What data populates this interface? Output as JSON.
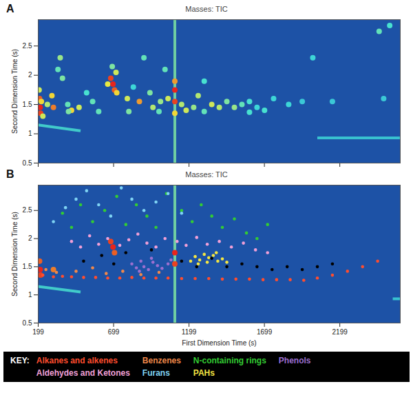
{
  "chart_data": [
    {
      "type": "scatter",
      "panel": "A",
      "title": "Masses: TIC",
      "ylabel": "Second Dimension Time (s)",
      "xlim": [
        199,
        2600
      ],
      "ylim": [
        0.5,
        2.95
      ],
      "xticks": [
        199,
        699,
        1199,
        1699,
        2199
      ],
      "yticks": [
        0.5,
        1,
        1.5,
        2,
        2.5
      ],
      "tick_labels": "y",
      "grid": false,
      "intensity_range": [
        0,
        100
      ],
      "streaks": [
        {
          "x1": 1105,
          "x2": 1105,
          "y1": 0.5,
          "y2": 2.95,
          "intensity": 45
        },
        {
          "x1": 2050,
          "x2": 2600,
          "y1": 0.93,
          "y2": 0.93,
          "intensity": 30
        },
        {
          "x1": 199,
          "x2": 480,
          "y1": 1.15,
          "y2": 1.05,
          "intensity": 35
        }
      ],
      "peaks": [
        {
          "x": 205,
          "y": 1.75,
          "intensity": 60
        },
        {
          "x": 208,
          "y": 1.6,
          "intensity": 90
        },
        {
          "x": 212,
          "y": 1.45,
          "intensity": 100
        },
        {
          "x": 215,
          "y": 1.35,
          "intensity": 95
        },
        {
          "x": 220,
          "y": 1.55,
          "intensity": 70
        },
        {
          "x": 230,
          "y": 1.3,
          "intensity": 60
        },
        {
          "x": 260,
          "y": 1.5,
          "intensity": 55
        },
        {
          "x": 290,
          "y": 1.65,
          "intensity": 70
        },
        {
          "x": 300,
          "y": 1.45,
          "intensity": 85
        },
        {
          "x": 330,
          "y": 2.1,
          "intensity": 40
        },
        {
          "x": 345,
          "y": 2.3,
          "intensity": 50
        },
        {
          "x": 360,
          "y": 1.95,
          "intensity": 45
        },
        {
          "x": 395,
          "y": 1.5,
          "intensity": 40
        },
        {
          "x": 420,
          "y": 1.4,
          "intensity": 70
        },
        {
          "x": 470,
          "y": 1.45,
          "intensity": 60
        },
        {
          "x": 520,
          "y": 1.7,
          "intensity": 35
        },
        {
          "x": 560,
          "y": 1.55,
          "intensity": 40
        },
        {
          "x": 660,
          "y": 1.85,
          "intensity": 65
        },
        {
          "x": 680,
          "y": 1.95,
          "intensity": 95
        },
        {
          "x": 695,
          "y": 1.85,
          "intensity": 100
        },
        {
          "x": 705,
          "y": 1.75,
          "intensity": 90
        },
        {
          "x": 715,
          "y": 2.05,
          "intensity": 60
        },
        {
          "x": 690,
          "y": 2.15,
          "intensity": 45
        },
        {
          "x": 720,
          "y": 1.7,
          "intensity": 70
        },
        {
          "x": 790,
          "y": 1.6,
          "intensity": 60
        },
        {
          "x": 830,
          "y": 1.8,
          "intensity": 30
        },
        {
          "x": 870,
          "y": 1.55,
          "intensity": 80
        },
        {
          "x": 900,
          "y": 2.3,
          "intensity": 40
        },
        {
          "x": 940,
          "y": 1.7,
          "intensity": 45
        },
        {
          "x": 960,
          "y": 1.45,
          "intensity": 55
        },
        {
          "x": 1010,
          "y": 1.55,
          "intensity": 50
        },
        {
          "x": 1040,
          "y": 2.1,
          "intensity": 40
        },
        {
          "x": 1060,
          "y": 1.6,
          "intensity": 60
        },
        {
          "x": 1105,
          "y": 1.55,
          "intensity": 95
        },
        {
          "x": 1105,
          "y": 1.75,
          "intensity": 100
        },
        {
          "x": 1105,
          "y": 1.9,
          "intensity": 80
        },
        {
          "x": 1105,
          "y": 1.35,
          "intensity": 70
        },
        {
          "x": 1150,
          "y": 1.5,
          "intensity": 55
        },
        {
          "x": 1180,
          "y": 1.4,
          "intensity": 60
        },
        {
          "x": 1230,
          "y": 1.45,
          "intensity": 50
        },
        {
          "x": 1260,
          "y": 1.65,
          "intensity": 55
        },
        {
          "x": 1300,
          "y": 1.9,
          "intensity": 35
        },
        {
          "x": 1350,
          "y": 1.5,
          "intensity": 60
        },
        {
          "x": 1400,
          "y": 1.45,
          "intensity": 55
        },
        {
          "x": 1450,
          "y": 1.55,
          "intensity": 45
        },
        {
          "x": 1500,
          "y": 1.45,
          "intensity": 50
        },
        {
          "x": 1550,
          "y": 1.5,
          "intensity": 40
        },
        {
          "x": 1600,
          "y": 1.55,
          "intensity": 35
        },
        {
          "x": 1650,
          "y": 1.45,
          "intensity": 30
        },
        {
          "x": 1700,
          "y": 1.4,
          "intensity": 35
        },
        {
          "x": 1760,
          "y": 1.6,
          "intensity": 30
        },
        {
          "x": 1860,
          "y": 1.5,
          "intensity": 30
        },
        {
          "x": 1950,
          "y": 1.55,
          "intensity": 25
        },
        {
          "x": 2020,
          "y": 2.3,
          "intensity": 30
        },
        {
          "x": 2150,
          "y": 1.55,
          "intensity": 25
        },
        {
          "x": 2460,
          "y": 2.75,
          "intensity": 40
        },
        {
          "x": 2530,
          "y": 2.85,
          "intensity": 35
        },
        {
          "x": 2490,
          "y": 1.6,
          "intensity": 25
        },
        {
          "x": 400,
          "y": 1.38,
          "intensity": 45
        },
        {
          "x": 600,
          "y": 1.38,
          "intensity": 40
        },
        {
          "x": 800,
          "y": 1.38,
          "intensity": 45
        },
        {
          "x": 1000,
          "y": 1.38,
          "intensity": 40
        },
        {
          "x": 1300,
          "y": 1.38,
          "intensity": 40
        },
        {
          "x": 1600,
          "y": 1.37,
          "intensity": 35
        }
      ]
    },
    {
      "type": "scatter",
      "panel": "B",
      "title": "Masses: TIC",
      "xlabel": "First Dimension Time (s)",
      "ylabel": "Second Dimension Time (s)",
      "xlim": [
        199,
        2600
      ],
      "ylim": [
        0.5,
        2.95
      ],
      "xticks": [
        199,
        699,
        1199,
        1699,
        2199
      ],
      "yticks": [
        0.5,
        1,
        1.5,
        2,
        2.5
      ],
      "grid": false,
      "intensity_range": [
        0,
        100
      ],
      "legend": "bottom",
      "legend_title": "KEY:",
      "streaks": [
        {
          "x1": 1105,
          "x2": 1105,
          "y1": 0.5,
          "y2": 2.95,
          "intensity": 45
        },
        {
          "x1": 2550,
          "x2": 2600,
          "y1": 0.93,
          "y2": 0.93,
          "intensity": 30
        },
        {
          "x1": 199,
          "x2": 480,
          "y1": 1.15,
          "y2": 1.05,
          "intensity": 35
        }
      ],
      "peaks": [
        {
          "x": 212,
          "y": 1.45,
          "intensity": 100
        },
        {
          "x": 215,
          "y": 1.35,
          "intensity": 95
        },
        {
          "x": 208,
          "y": 1.6,
          "intensity": 90
        },
        {
          "x": 300,
          "y": 1.45,
          "intensity": 85
        },
        {
          "x": 695,
          "y": 1.85,
          "intensity": 100
        },
        {
          "x": 680,
          "y": 1.95,
          "intensity": 95
        },
        {
          "x": 705,
          "y": 1.75,
          "intensity": 90
        },
        {
          "x": 1105,
          "y": 1.75,
          "intensity": 100
        },
        {
          "x": 1105,
          "y": 1.55,
          "intensity": 95
        }
      ],
      "series": [
        {
          "name": "Alkanes and alkenes",
          "color": "#ff4d2e",
          "x": [
            230,
            300,
            360,
            420,
            500,
            580,
            660,
            740,
            820,
            900,
            980,
            1060,
            1150,
            1240,
            1330,
            1420,
            1510,
            1600,
            1690,
            1780,
            1870,
            1960,
            2050,
            2150,
            2250,
            2350,
            2450
          ],
          "y": [
            1.35,
            1.32,
            1.33,
            1.32,
            1.31,
            1.31,
            1.3,
            1.3,
            1.31,
            1.3,
            1.3,
            1.3,
            1.29,
            1.29,
            1.29,
            1.28,
            1.28,
            1.28,
            1.27,
            1.27,
            1.27,
            1.26,
            1.3,
            1.35,
            1.42,
            1.5,
            1.6
          ]
        },
        {
          "name": "Benzenes",
          "color": "#f0884a",
          "x": [
            250,
            320,
            450,
            560,
            650,
            760,
            880,
            1000
          ],
          "y": [
            1.45,
            1.4,
            1.42,
            1.48,
            1.38,
            1.42,
            1.36,
            1.4
          ]
        },
        {
          "name": "N-containing rings",
          "color": "#33cc33",
          "x": [
            360,
            420,
            480,
            560,
            640,
            720,
            780,
            850,
            920,
            980,
            1050,
            1150,
            1220,
            1280,
            1350,
            1420,
            1500,
            1580,
            1650,
            1720
          ],
          "y": [
            2.45,
            2.2,
            2.6,
            2.3,
            2.5,
            2.75,
            2.25,
            2.6,
            2.4,
            2.2,
            2.8,
            2.5,
            2.3,
            2.6,
            2.4,
            2.2,
            2.35,
            2.1,
            2.0,
            2.25
          ]
        },
        {
          "name": "Phenols",
          "color": "#9b6fd0",
          "x": [
            820,
            850,
            880,
            900,
            930,
            960,
            990,
            1020,
            1060,
            1080,
            870,
            950
          ],
          "y": [
            1.55,
            1.48,
            1.6,
            1.5,
            1.45,
            1.58,
            1.52,
            1.47,
            1.55,
            1.62,
            1.42,
            1.65
          ]
        },
        {
          "name": "Aldehydes and Ketones",
          "color": "#f2a0d8",
          "x": [
            420,
            480,
            540,
            600,
            660,
            740,
            800,
            860,
            920,
            980,
            1040,
            1120,
            1180,
            1250,
            1320,
            1400,
            1480,
            1560,
            1640,
            1720
          ],
          "y": [
            1.95,
            1.85,
            2.05,
            1.9,
            2.0,
            1.88,
            1.98,
            2.08,
            1.92,
            1.85,
            2.0,
            1.95,
            1.88,
            2.02,
            1.9,
            1.95,
            1.85,
            1.92,
            1.8,
            1.75
          ]
        },
        {
          "name": "Furans",
          "color": "#7fd4f4",
          "x": [
            300,
            380,
            450,
            520,
            600,
            680,
            750,
            820,
            900,
            980,
            1060,
            1150
          ],
          "y": [
            2.3,
            2.55,
            2.7,
            2.85,
            2.6,
            2.4,
            2.9,
            2.7,
            2.5,
            2.65,
            2.8,
            2.45
          ]
        },
        {
          "name": "PAHs",
          "color": "#f5e642",
          "x": [
            1210,
            1240,
            1270,
            1300,
            1330,
            1360,
            1390,
            1420,
            1450,
            1260,
            1320,
            1380
          ],
          "y": [
            1.6,
            1.68,
            1.62,
            1.72,
            1.66,
            1.7,
            1.6,
            1.64,
            1.58,
            1.55,
            1.58,
            1.75
          ]
        },
        {
          "color": "#000000",
          "x": [
            500,
            620,
            700,
            780,
            950,
            1150,
            1250,
            1350,
            1450,
            1550,
            1650,
            1750,
            1850,
            1950,
            2050,
            2150
          ],
          "y": [
            1.6,
            1.7,
            1.55,
            1.75,
            1.8,
            1.6,
            1.5,
            1.65,
            1.5,
            1.55,
            1.5,
            1.45,
            1.5,
            1.45,
            1.5,
            1.55
          ]
        }
      ]
    }
  ]
}
